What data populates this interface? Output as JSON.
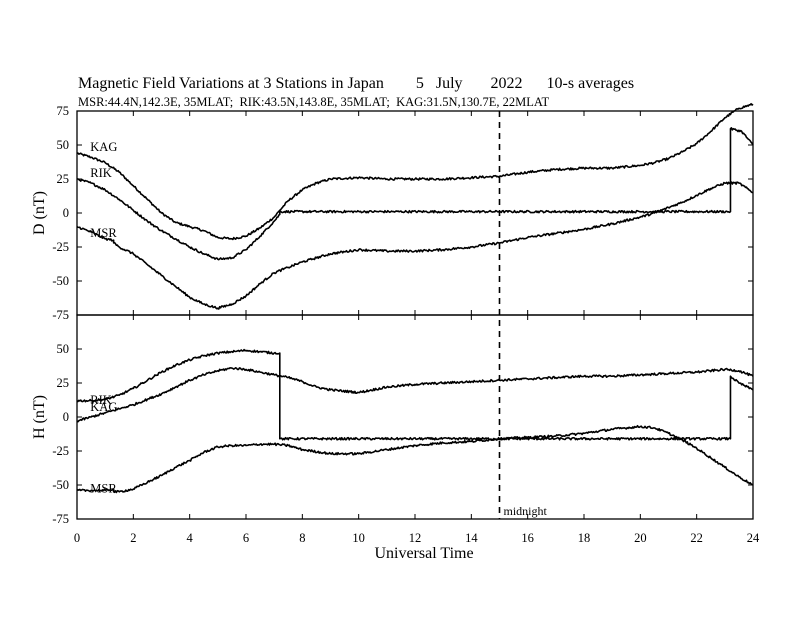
{
  "chart_data": {
    "type": "line",
    "title": "Magnetic Field Variations at 3 Stations in Japan        5   July       2022      10-s averages",
    "subtitle": "MSR:44.4N,142.3E, 35MLAT;  RIK:43.5N,143.8E, 35MLAT;  KAG:31.5N,130.7E, 22MLAT",
    "xlabel": "Universal Time",
    "xlim": [
      0,
      24
    ],
    "x_ticks": [
      "0",
      "2",
      "4",
      "6",
      "8",
      "10",
      "12",
      "14",
      "16",
      "18",
      "20",
      "22",
      "24"
    ],
    "annotations": [
      {
        "x": 15,
        "style": "dashed-vertical",
        "text": "midnight"
      }
    ],
    "panels": [
      {
        "ylabel": "D (nT)",
        "ylim": [
          -75,
          75
        ],
        "y_ticks": [
          "75",
          "50",
          "25",
          "0",
          "-25",
          "-50",
          "-75"
        ],
        "series": [
          {
            "name": "KAG",
            "x": [
              0,
              0.5,
              1,
              1.5,
              2,
              2.5,
              3,
              3.5,
              4,
              4.5,
              5,
              5.5,
              6,
              6.5,
              7,
              7.2,
              7.5,
              8,
              8.5,
              9,
              10,
              11,
              12,
              13,
              14,
              15,
              16,
              17,
              18,
              19,
              20,
              20.5,
              21,
              21.5,
              22,
              22.5,
              23,
              23.5,
              24
            ],
            "y": [
              44,
              41,
              37,
              30,
              20,
              10,
              0,
              -7,
              -10,
              -13,
              -18,
              -19,
              -17,
              -11,
              -3,
              2,
              9,
              17,
              22,
              25,
              26,
              25,
              25,
              25,
              26,
              27,
              30,
              32,
              33,
              33,
              35,
              37,
              40,
              45,
              51,
              60,
              70,
              77,
              80
            ]
          },
          {
            "name": "RIK",
            "x": [
              0,
              0.5,
              1,
              1.5,
              2,
              2.5,
              3,
              3.5,
              4,
              4.5,
              5,
              5.5,
              6,
              6.5,
              7,
              7.2,
              7.2,
              23.2,
              23.2,
              23.6,
              24
            ],
            "y": [
              25,
              22,
              17,
              10,
              2,
              -6,
              -13,
              -19,
              -25,
              -30,
              -34,
              -33,
              -27,
              -17,
              -6,
              -1,
              1,
              1,
              62,
              60,
              50
            ]
          },
          {
            "name": "MSR",
            "x": [
              0,
              0.5,
              1,
              1.3,
              1.3,
              1.5,
              2,
              2.5,
              3,
              3.5,
              4,
              4.5,
              5,
              5.5,
              6,
              6.5,
              7,
              7.5,
              8,
              8.5,
              9,
              10,
              11,
              12,
              13,
              14,
              15,
              16,
              17,
              18,
              19,
              20,
              20.5,
              21,
              21.5,
              22,
              22.5,
              23,
              23.5,
              24
            ],
            "y": [
              -10,
              -14,
              -19,
              -20,
              -22,
              -25,
              -30,
              -38,
              -46,
              -54,
              -62,
              -67,
              -70,
              -67,
              -61,
              -52,
              -44,
              -40,
              -36,
              -33,
              -30,
              -27,
              -28,
              -28,
              -27,
              -25,
              -22,
              -18,
              -15,
              -12,
              -8,
              -3,
              0,
              4,
              8,
              13,
              18,
              22,
              22,
              15
            ]
          }
        ]
      },
      {
        "ylabel": "H (nT)",
        "ylim": [
          -75,
          75
        ],
        "y_ticks": [
          "75",
          "50",
          "25",
          "0",
          "-25",
          "-50",
          "-75"
        ],
        "series": [
          {
            "name": "RIK",
            "x": [
              0,
              0.5,
              1,
              1.5,
              2,
              2.5,
              3,
              3.5,
              4,
              4.5,
              5,
              5.5,
              6,
              6.5,
              7,
              7.2,
              7.2,
              23.2,
              23.2,
              23.5,
              24
            ],
            "y": [
              12,
              12,
              13,
              16,
              21,
              27,
              33,
              38,
              42,
              45,
              47,
              48,
              49,
              48,
              47,
              47,
              -16,
              -16,
              30,
              25,
              20
            ]
          },
          {
            "name": "KAG",
            "x": [
              0,
              0.5,
              1,
              1.5,
              2,
              2.5,
              3,
              3.5,
              4,
              4.5,
              5,
              5.5,
              6,
              6.5,
              7,
              7.5,
              8,
              8.5,
              9,
              10,
              11,
              12,
              13,
              14,
              15,
              16,
              17,
              18,
              19,
              20,
              21,
              22,
              23,
              23.5,
              24
            ],
            "y": [
              -3,
              0,
              3,
              6,
              9,
              13,
              17,
              22,
              27,
              31,
              34,
              36,
              35,
              33,
              31,
              29,
              26,
              22,
              20,
              18,
              22,
              24,
              25,
              26,
              27,
              28,
              29,
              30,
              30,
              31,
              32,
              33,
              35,
              34,
              30
            ]
          },
          {
            "name": "MSR",
            "x": [
              0,
              0.5,
              1,
              1.3,
              1.3,
              1.5,
              2,
              2.5,
              3,
              3.5,
              4,
              4.5,
              5,
              5.5,
              6,
              6.5,
              7,
              7.5,
              8,
              9,
              10,
              11,
              12,
              13,
              14,
              15,
              16,
              17,
              18,
              19,
              20,
              20.5,
              21,
              21.5,
              22,
              22.5,
              23,
              23.5,
              24
            ],
            "y": [
              -54,
              -54,
              -54,
              -53,
              -55,
              -55,
              -53,
              -48,
              -43,
              -37,
              -32,
              -26,
              -22,
              -21,
              -21,
              -20,
              -20,
              -21,
              -24,
              -27,
              -27,
              -24,
              -21,
              -19,
              -18,
              -16,
              -15,
              -14,
              -12,
              -9,
              -7,
              -8,
              -12,
              -17,
              -23,
              -30,
              -37,
              -44,
              -50
            ]
          }
        ]
      }
    ]
  }
}
